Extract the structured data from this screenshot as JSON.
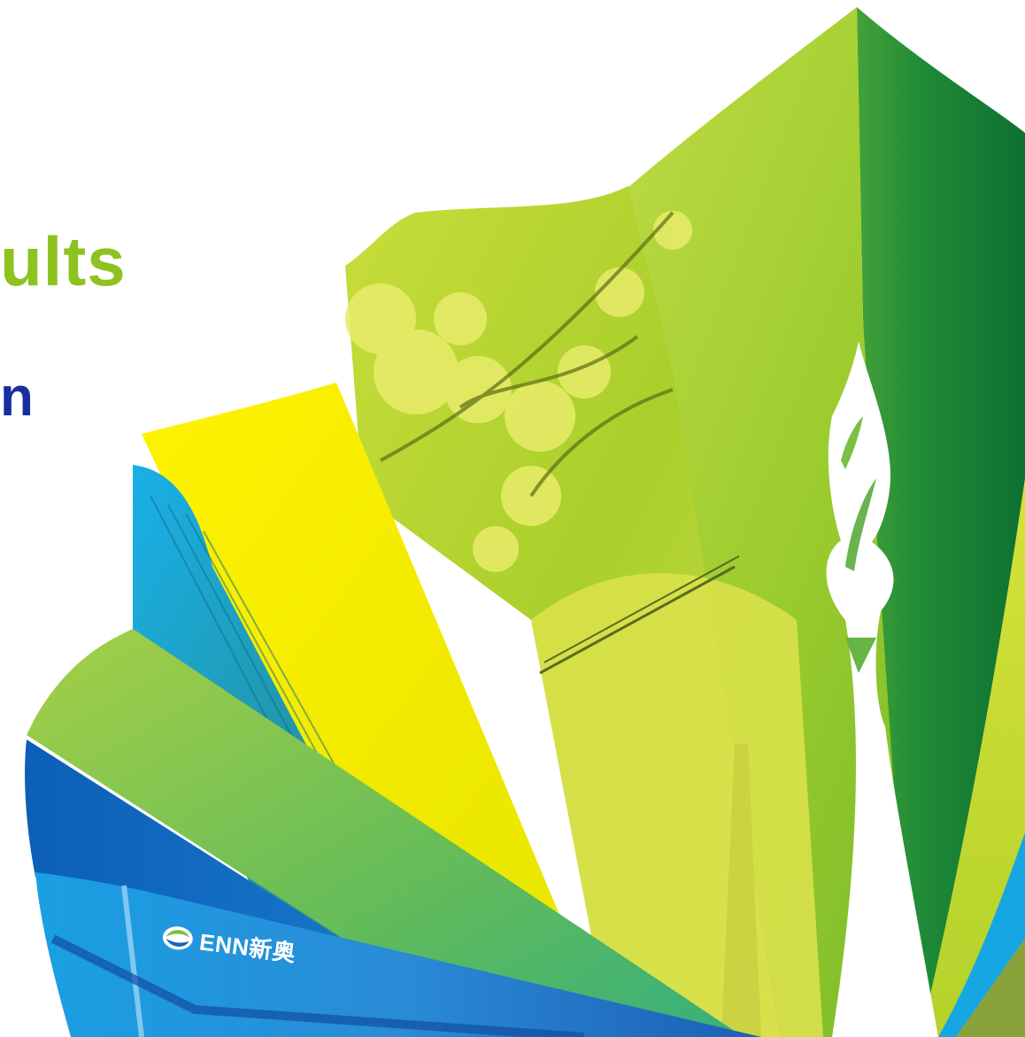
{
  "slide": {
    "headline": "ults",
    "subheading": "n"
  },
  "logo": {
    "text": "ENN新奥",
    "icon": "enn-swirl-icon"
  },
  "colors": {
    "headline": "#8dc21f",
    "subheading": "#1a2f9e",
    "yellow": "#ffee00",
    "lime": "#9fcc2d",
    "green": "#2f9a3c",
    "dark_green": "#0f7a34",
    "blue": "#1664b8",
    "cyan": "#1aa7e6"
  }
}
